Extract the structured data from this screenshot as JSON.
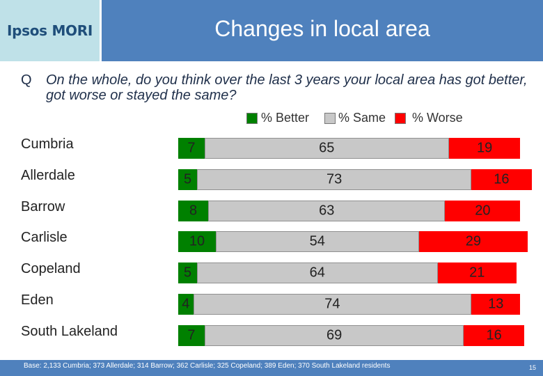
{
  "header": {
    "logo_text": "Ipsos MORI",
    "title": "Changes in local area"
  },
  "question": {
    "prefix": "Q",
    "text": "On the whole, do you think over the last 3 years your local area has got better, got worse or stayed the same?"
  },
  "legend": {
    "better": "% Better",
    "same": "% Same",
    "worse": "% Worse"
  },
  "colors": {
    "better": "#008000",
    "same": "#c8c8c8",
    "worse": "#ff0000",
    "title_bar": "#4f81bd",
    "logo_bg": "#bfe1e8"
  },
  "chart_data": {
    "type": "bar",
    "orientation": "horizontal",
    "stacked": true,
    "categories": [
      "Cumbria",
      "Allerdale",
      "Barrow",
      "Carlisle",
      "Copeland",
      "Eden",
      "South Lakeland"
    ],
    "series": [
      {
        "name": "% Better",
        "values": [
          7,
          5,
          8,
          10,
          5,
          4,
          7
        ]
      },
      {
        "name": "% Same",
        "values": [
          65,
          73,
          63,
          54,
          64,
          74,
          69
        ]
      },
      {
        "name": "% Worse",
        "values": [
          19,
          16,
          20,
          29,
          21,
          13,
          16
        ]
      }
    ],
    "legend_position": "top"
  },
  "footer": {
    "base": "Base: 2,133 Cumbria; 373 Allerdale; 314 Barrow; 362 Carlisle; 325 Copeland; 389 Eden; 370 South Lakeland residents",
    "page_number": "15"
  }
}
